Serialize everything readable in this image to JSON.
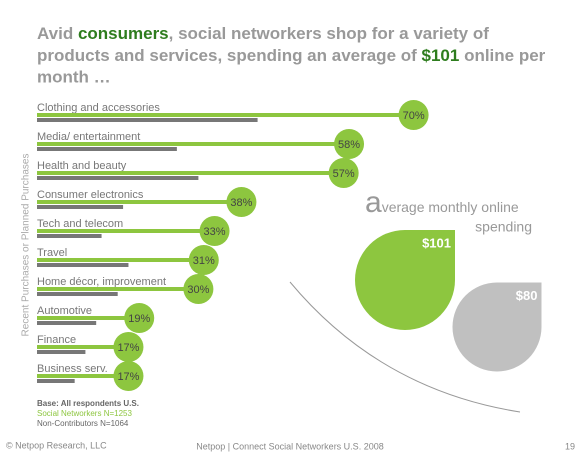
{
  "title_parts": [
    "Avid ",
    "consumers",
    ", social networkers shop for a variety of",
    "products and services, spending an average of ",
    "$101",
    " online per",
    "month …"
  ],
  "chart_data": [
    {
      "type": "bar",
      "y_axis_label": "Recent Purchases or Planned Purchases",
      "categories": [
        "Clothing and accessories",
        "Media/ entertainment",
        "Health and beauty",
        "Consumer electronics",
        "Tech and telecom",
        "Travel",
        "Home décor, improvement",
        "Automotive",
        "Finance",
        "Business serv."
      ],
      "xlim": [
        0,
        100
      ],
      "series": [
        {
          "name": "Social Networkers N=1253",
          "color": "#8dc63f",
          "values": [
            70,
            58,
            57,
            38,
            33,
            31,
            30,
            19,
            17,
            17
          ],
          "value_labels": [
            "70%",
            "58%",
            "57%",
            "38%",
            "33%",
            "31%",
            "30%",
            "19%",
            "17%",
            "17%"
          ]
        },
        {
          "name": "Non-Contributors N=1064",
          "color": "#777777",
          "values": [
            41,
            26,
            30,
            16,
            12,
            17,
            15,
            11,
            9,
            7
          ]
        }
      ],
      "base_note": "Base: All respondents U.S."
    },
    {
      "type": "drop",
      "title_parts": [
        "a",
        "verage monthly online",
        "spending"
      ],
      "categories": [
        "Social Networkers",
        "Non-Contributors"
      ],
      "colors": [
        "#8dc63f",
        "#c0c0c0"
      ],
      "values": [
        101,
        80
      ],
      "value_labels": [
        "$101",
        "$80"
      ]
    }
  ],
  "footer": {
    "left": "© Netpop Research, LLC",
    "center": "Netpop | Connect  Social Networkers U.S. 2008",
    "page": "19"
  }
}
